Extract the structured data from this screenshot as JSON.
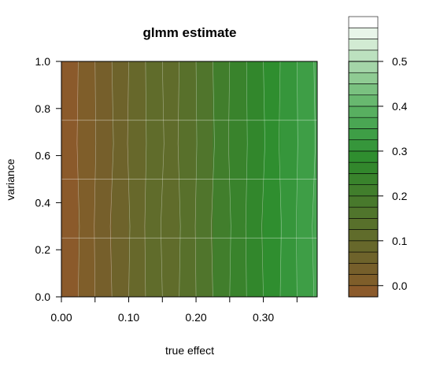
{
  "chart_data": {
    "type": "heatmap",
    "title": "glmm estimate",
    "xlabel": "true effect",
    "ylabel": "variance",
    "xlim": [
      0.0,
      0.38
    ],
    "ylim": [
      0.0,
      1.0
    ],
    "x_ticks": [
      0.0,
      0.05,
      0.1,
      0.15,
      0.2,
      0.25,
      0.3,
      0.35
    ],
    "x_tick_labels": [
      "0.00",
      "0.10",
      "0.20",
      "0.30"
    ],
    "x_tick_label_values": [
      0.0,
      0.1,
      0.2,
      0.3
    ],
    "y_ticks": [
      0.0,
      0.2,
      0.4,
      0.6,
      0.8,
      1.0
    ],
    "y_tick_labels": [
      "0.0",
      "0.2",
      "0.4",
      "0.6",
      "0.8",
      "1.0"
    ],
    "grid_y": [
      0.25,
      0.5,
      0.75
    ],
    "legend_position": "right",
    "colorbar": {
      "min": -0.025,
      "max": 0.5,
      "step": 0.025,
      "ticks": [
        0.0,
        0.1,
        0.2,
        0.3,
        0.4,
        0.5
      ],
      "tick_labels": [
        "0.0",
        "0.1",
        "0.2",
        "0.3",
        "0.4",
        "0.5"
      ],
      "colors": [
        "#8b5a2b",
        "#7f5e2a",
        "#765f2b",
        "#6e632b",
        "#67682b",
        "#606c2b",
        "#58702b",
        "#50752c",
        "#48792c",
        "#417e2c",
        "#39832c",
        "#32872c",
        "#2f8e2f",
        "#36963b",
        "#3e9e46",
        "#4aa653",
        "#58af60",
        "#68b86f",
        "#7ac180",
        "#8fcb93",
        "#a4d5a8",
        "#bce1bf",
        "#d2ebd3",
        "#e8f5e9",
        "#ffffff"
      ]
    },
    "estimate_by_true_effect": {
      "x": [
        0.0,
        0.025,
        0.05,
        0.075,
        0.1,
        0.125,
        0.15,
        0.175,
        0.2,
        0.225,
        0.25,
        0.275,
        0.3,
        0.325,
        0.35,
        0.375
      ],
      "values": [
        -0.025,
        0.0,
        0.025,
        0.05,
        0.075,
        0.1,
        0.125,
        0.15,
        0.175,
        0.2,
        0.225,
        0.25,
        0.275,
        0.3,
        0.325,
        0.35
      ]
    }
  }
}
